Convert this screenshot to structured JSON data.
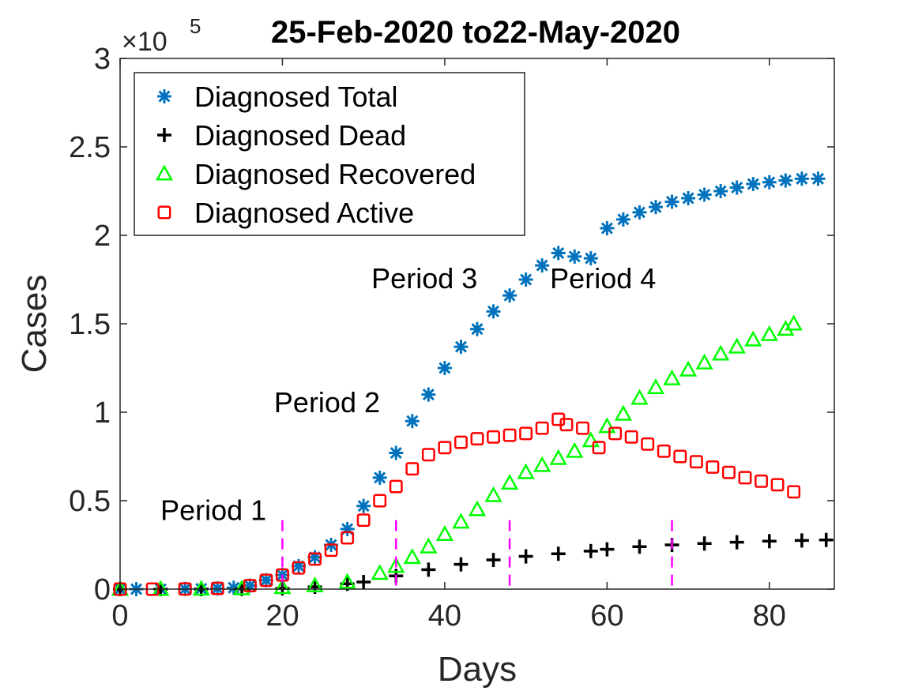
{
  "chart_data": {
    "type": "scatter",
    "title": "25-Feb-2020 to22-May-2020",
    "xlabel": "Days",
    "ylabel": "Cases",
    "y_exponent_label": "×10",
    "y_exponent_power": "5",
    "xlim": [
      0,
      88
    ],
    "ylim": [
      0,
      300000
    ],
    "xticks": [
      0,
      20,
      40,
      60,
      80
    ],
    "yticks": [
      0,
      50000,
      100000,
      150000,
      200000,
      250000,
      300000
    ],
    "ytick_labels": [
      "0",
      "0.5",
      "1",
      "1.5",
      "2",
      "2.5",
      "3"
    ],
    "grid": false,
    "legend_position": "top-left",
    "series": [
      {
        "name": "Diagnosed Total",
        "marker": "asterisk",
        "color": "#0072BD",
        "points": [
          [
            0,
            0
          ],
          [
            2,
            0
          ],
          [
            5,
            0
          ],
          [
            8,
            100
          ],
          [
            10,
            200
          ],
          [
            12,
            400
          ],
          [
            14,
            800
          ],
          [
            16,
            2000
          ],
          [
            18,
            5000
          ],
          [
            20,
            8000
          ],
          [
            22,
            13000
          ],
          [
            24,
            18000
          ],
          [
            26,
            25000
          ],
          [
            28,
            34000
          ],
          [
            30,
            47000
          ],
          [
            32,
            63000
          ],
          [
            34,
            77000
          ],
          [
            36,
            95000
          ],
          [
            38,
            110000
          ],
          [
            40,
            125000
          ],
          [
            42,
            137000
          ],
          [
            44,
            147000
          ],
          [
            46,
            157000
          ],
          [
            48,
            166000
          ],
          [
            50,
            175000
          ],
          [
            52,
            183000
          ],
          [
            54,
            190000
          ],
          [
            56,
            188000
          ],
          [
            58,
            187000
          ],
          [
            60,
            204000
          ],
          [
            62,
            209000
          ],
          [
            64,
            213000
          ],
          [
            66,
            216000
          ],
          [
            68,
            219000
          ],
          [
            70,
            221000
          ],
          [
            72,
            223000
          ],
          [
            74,
            225000
          ],
          [
            76,
            227000
          ],
          [
            78,
            229000
          ],
          [
            80,
            230000
          ],
          [
            82,
            231000
          ],
          [
            84,
            232000
          ],
          [
            86,
            232000
          ]
        ]
      },
      {
        "name": "Diagnosed Dead",
        "marker": "plus",
        "color": "#000000",
        "points": [
          [
            0,
            0
          ],
          [
            5,
            0
          ],
          [
            10,
            0
          ],
          [
            15,
            100
          ],
          [
            20,
            400
          ],
          [
            24,
            1300
          ],
          [
            28,
            3000
          ],
          [
            30,
            4000
          ],
          [
            34,
            7500
          ],
          [
            38,
            11000
          ],
          [
            42,
            14000
          ],
          [
            46,
            16500
          ],
          [
            50,
            18500
          ],
          [
            54,
            20000
          ],
          [
            58,
            21500
          ],
          [
            60,
            22500
          ],
          [
            64,
            24000
          ],
          [
            68,
            25000
          ],
          [
            72,
            25800
          ],
          [
            76,
            26500
          ],
          [
            80,
            27100
          ],
          [
            84,
            27500
          ],
          [
            87,
            27800
          ]
        ]
      },
      {
        "name": "Diagnosed Recovered",
        "marker": "triangle",
        "color": "#00FF00",
        "points": [
          [
            0,
            0
          ],
          [
            5,
            0
          ],
          [
            10,
            100
          ],
          [
            15,
            300
          ],
          [
            20,
            1000
          ],
          [
            24,
            2000
          ],
          [
            28,
            4000
          ],
          [
            32,
            9000
          ],
          [
            34,
            13000
          ],
          [
            36,
            18000
          ],
          [
            38,
            24000
          ],
          [
            40,
            31000
          ],
          [
            42,
            38000
          ],
          [
            44,
            45000
          ],
          [
            46,
            53000
          ],
          [
            48,
            60000
          ],
          [
            50,
            66000
          ],
          [
            52,
            70000
          ],
          [
            54,
            74000
          ],
          [
            56,
            78000
          ],
          [
            58,
            84000
          ],
          [
            60,
            92000
          ],
          [
            62,
            99000
          ],
          [
            64,
            108000
          ],
          [
            66,
            114000
          ],
          [
            68,
            119000
          ],
          [
            70,
            124000
          ],
          [
            72,
            128000
          ],
          [
            74,
            133000
          ],
          [
            76,
            137000
          ],
          [
            78,
            141000
          ],
          [
            80,
            144000
          ],
          [
            82,
            147000
          ],
          [
            83,
            150000
          ]
        ]
      },
      {
        "name": "Diagnosed Active",
        "marker": "square",
        "color": "#FF0000",
        "points": [
          [
            0,
            0
          ],
          [
            4,
            0
          ],
          [
            8,
            100
          ],
          [
            12,
            400
          ],
          [
            16,
            2000
          ],
          [
            18,
            5000
          ],
          [
            20,
            8000
          ],
          [
            22,
            12000
          ],
          [
            24,
            17000
          ],
          [
            26,
            22000
          ],
          [
            28,
            29000
          ],
          [
            30,
            39000
          ],
          [
            32,
            50000
          ],
          [
            34,
            58000
          ],
          [
            36,
            68000
          ],
          [
            38,
            76000
          ],
          [
            40,
            80000
          ],
          [
            42,
            83000
          ],
          [
            44,
            85000
          ],
          [
            46,
            86000
          ],
          [
            48,
            87000
          ],
          [
            50,
            88000
          ],
          [
            52,
            91000
          ],
          [
            54,
            96000
          ],
          [
            55,
            93000
          ],
          [
            57,
            91000
          ],
          [
            59,
            80000
          ],
          [
            61,
            88000
          ],
          [
            63,
            86000
          ],
          [
            65,
            82000
          ],
          [
            67,
            78000
          ],
          [
            69,
            75000
          ],
          [
            71,
            72000
          ],
          [
            73,
            69000
          ],
          [
            75,
            66000
          ],
          [
            77,
            63000
          ],
          [
            79,
            61000
          ],
          [
            81,
            59000
          ],
          [
            83,
            55000
          ]
        ]
      }
    ],
    "period_dividers": [
      20,
      34,
      48,
      68
    ],
    "divider_color": "#FF00FF",
    "annotations": [
      {
        "text": "Period 1",
        "x": 11.5,
        "y": 39000
      },
      {
        "text": "Period 2",
        "x": 25.5,
        "y": 100000
      },
      {
        "text": "Period 3",
        "x": 37.5,
        "y": 170000
      },
      {
        "text": "Period 4",
        "x": 59.5,
        "y": 170000
      }
    ]
  }
}
